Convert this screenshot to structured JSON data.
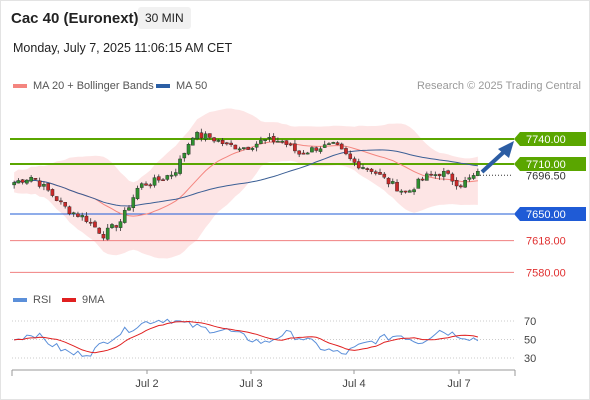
{
  "header": {
    "title": "Cac 40 (Euronext)",
    "timeframe": "30 MIN",
    "datetime": "Monday, July 7, 2025 11:06:15 AM CET",
    "source": "Research © 2025 Trading Central"
  },
  "legend": {
    "main": [
      {
        "label": "MA 20 + Bollinger Bands",
        "color": "#f4857f"
      },
      {
        "label": "MA 50",
        "color": "#2b5fa5"
      }
    ],
    "rsi": [
      {
        "label": "RSI",
        "color": "#5b8fd9"
      },
      {
        "label": "9MA",
        "color": "#e02020"
      }
    ]
  },
  "colors": {
    "resistance": "#5aa600",
    "pivot": "#1f5bd6",
    "support": "#f08080",
    "candle_up": "#2f8f2f",
    "candle_down": "#c92a2a",
    "band_fill": "#fde0e0",
    "arrow": "#2c5da3"
  },
  "chart_data": [
    {
      "type": "candlestick",
      "ylim": [
        7565,
        7760
      ],
      "x_ticks": [
        "Jul 2",
        "Jul 3",
        "Jul 4",
        "Jul 7"
      ],
      "close_key_points": [
        7688,
        7695,
        7676,
        7655,
        7645,
        7625,
        7642,
        7684,
        7690,
        7700,
        7745,
        7742,
        7732,
        7730,
        7738,
        7738,
        7722,
        7730,
        7732,
        7712,
        7704,
        7688,
        7675,
        7694,
        7700,
        7685,
        7698
      ],
      "levels": [
        {
          "label": "7740.00",
          "value": 7740,
          "kind": "resistance"
        },
        {
          "label": "7710.00",
          "value": 7710,
          "kind": "resistance"
        },
        {
          "label": "7696.50",
          "value": 7696.5,
          "kind": "last"
        },
        {
          "label": "7650.00",
          "value": 7650,
          "kind": "pivot"
        },
        {
          "label": "7618.00",
          "value": 7618,
          "kind": "support"
        },
        {
          "label": "7580.00",
          "value": 7580,
          "kind": "support"
        }
      ]
    },
    {
      "type": "line",
      "ylim": [
        20,
        80
      ],
      "y_ticks": [
        70,
        50,
        30
      ],
      "rsi_key_points": [
        50,
        57,
        44,
        34,
        36,
        52,
        62,
        70,
        72,
        66,
        61,
        60,
        52,
        46,
        57,
        51,
        40,
        34,
        44,
        51,
        55,
        47,
        60,
        55,
        50
      ]
    }
  ]
}
